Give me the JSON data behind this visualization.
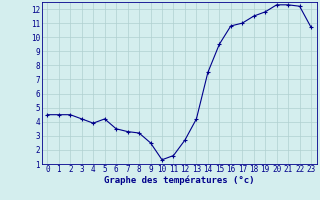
{
  "hours": [
    0,
    1,
    2,
    3,
    4,
    5,
    6,
    7,
    8,
    9,
    10,
    11,
    12,
    13,
    14,
    15,
    16,
    17,
    18,
    19,
    20,
    21,
    22,
    23
  ],
  "temps": [
    4.5,
    4.5,
    4.5,
    4.2,
    3.9,
    4.2,
    3.5,
    3.3,
    3.2,
    2.5,
    1.3,
    1.6,
    2.7,
    4.2,
    7.5,
    9.5,
    10.8,
    11.0,
    11.5,
    11.8,
    12.3,
    12.3,
    12.2,
    10.7
  ],
  "line_color": "#00008B",
  "marker_color": "#00008B",
  "bg_color": "#d4eeee",
  "grid_color": "#b0d0d0",
  "axis_label_color": "#00008B",
  "xlabel": "Graphe des températures (°c)",
  "ylim": [
    1,
    12.5
  ],
  "xlim": [
    -0.5,
    23.5
  ],
  "yticks": [
    1,
    2,
    3,
    4,
    5,
    6,
    7,
    8,
    9,
    10,
    11,
    12
  ],
  "xticks": [
    0,
    1,
    2,
    3,
    4,
    5,
    6,
    7,
    8,
    9,
    10,
    11,
    12,
    13,
    14,
    15,
    16,
    17,
    18,
    19,
    20,
    21,
    22,
    23
  ],
  "tick_fontsize": 5.5,
  "xlabel_fontsize": 6.5
}
